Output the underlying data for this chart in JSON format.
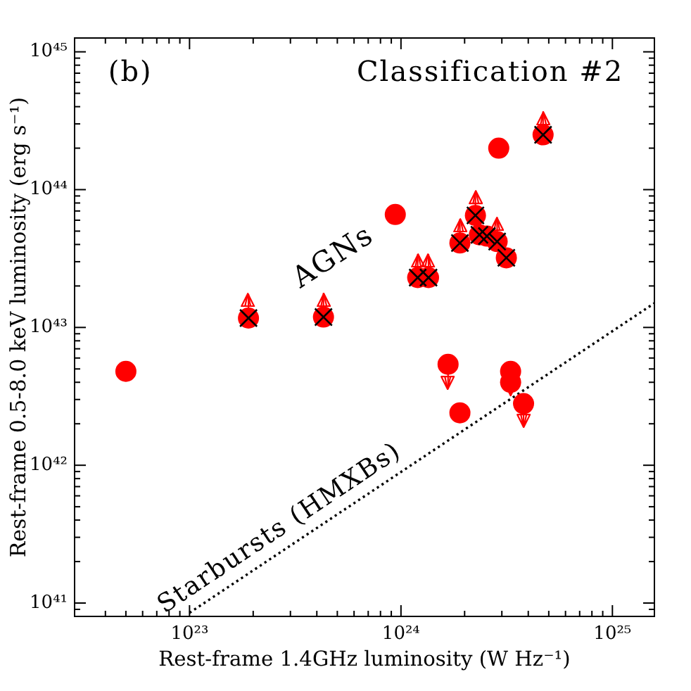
{
  "chart_data": {
    "type": "scatter",
    "xlabel": "Rest-frame 1.4GHz luminosity (W Hz⁻¹)",
    "ylabel": "Rest-frame 0.5-8.0 keV luminosity (erg s⁻¹)",
    "annotations": [
      "(b)",
      "Classification #2",
      "AGNs"
    ],
    "log": "xy",
    "xlim": [
      2.86e+22,
      1.58e+25
    ],
    "xticks": [
      {
        "value": 4e+22,
        "label": null
      },
      {
        "value": 5e+22,
        "label": null
      },
      {
        "value": 6e+22,
        "label": null
      },
      {
        "value": 7e+22,
        "label": null
      },
      {
        "value": 8e+22,
        "label": null
      },
      {
        "value": 9e+22,
        "label": null
      },
      {
        "value": 1e+23,
        "label": "10²³"
      },
      {
        "value": 2e+23,
        "label": null
      },
      {
        "value": 3e+23,
        "label": null
      },
      {
        "value": 4e+23,
        "label": null
      },
      {
        "value": 5e+23,
        "label": null
      },
      {
        "value": 6e+23,
        "label": null
      },
      {
        "value": 7e+23,
        "label": null
      },
      {
        "value": 8e+23,
        "label": null
      },
      {
        "value": 9e+23,
        "label": null
      },
      {
        "value": 1e+24,
        "label": "10²⁴"
      },
      {
        "value": 2e+24,
        "label": null
      },
      {
        "value": 3e+24,
        "label": null
      },
      {
        "value": 4e+24,
        "label": null
      },
      {
        "value": 5e+24,
        "label": null
      },
      {
        "value": 6e+24,
        "label": null
      },
      {
        "value": 7e+24,
        "label": null
      },
      {
        "value": 8e+24,
        "label": null
      },
      {
        "value": 9e+24,
        "label": null
      },
      {
        "value": 1e+25,
        "label": "10²⁵"
      }
    ],
    "ylim": [
      8e+40,
      1.26e+45
    ],
    "yticks": [
      {
        "value": 9e+40,
        "label": null
      },
      {
        "value": 1e+41,
        "label": "10⁴¹"
      },
      {
        "value": 2e+41,
        "label": null
      },
      {
        "value": 3e+41,
        "label": null
      },
      {
        "value": 4e+41,
        "label": null
      },
      {
        "value": 5e+41,
        "label": null
      },
      {
        "value": 6e+41,
        "label": null
      },
      {
        "value": 7e+41,
        "label": null
      },
      {
        "value": 8e+41,
        "label": null
      },
      {
        "value": 9e+41,
        "label": null
      },
      {
        "value": 1e+42,
        "label": "10⁴²"
      },
      {
        "value": 2e+42,
        "label": null
      },
      {
        "value": 3e+42,
        "label": null
      },
      {
        "value": 4e+42,
        "label": null
      },
      {
        "value": 5e+42,
        "label": null
      },
      {
        "value": 6e+42,
        "label": null
      },
      {
        "value": 7e+42,
        "label": null
      },
      {
        "value": 8e+42,
        "label": null
      },
      {
        "value": 9e+42,
        "label": null
      },
      {
        "value": 1e+43,
        "label": "10⁴³"
      },
      {
        "value": 2e+43,
        "label": null
      },
      {
        "value": 3e+43,
        "label": null
      },
      {
        "value": 4e+43,
        "label": null
      },
      {
        "value": 5e+43,
        "label": null
      },
      {
        "value": 6e+43,
        "label": null
      },
      {
        "value": 7e+43,
        "label": null
      },
      {
        "value": 8e+43,
        "label": null
      },
      {
        "value": 9e+43,
        "label": null
      },
      {
        "value": 1e+44,
        "label": "10⁴⁴"
      },
      {
        "value": 2e+44,
        "label": null
      },
      {
        "value": 3e+44,
        "label": null
      },
      {
        "value": 4e+44,
        "label": null
      },
      {
        "value": 5e+44,
        "label": null
      },
      {
        "value": 6e+44,
        "label": null
      },
      {
        "value": 7e+44,
        "label": null
      },
      {
        "value": 8e+44,
        "label": null
      },
      {
        "value": 9e+44,
        "label": null
      },
      {
        "value": 1e+45,
        "label": "10⁴⁵"
      }
    ],
    "series": [
      {
        "type": "scatter",
        "color": "#ff0000",
        "marker": "circle",
        "x": [
          5e+22,
          9.4e+23,
          2.9e+24,
          1.9e+24,
          3.3e+24
        ],
        "values": [
          4.8e+42,
          6.6e+43,
          2e+44,
          2.4e+42,
          4e+42
        ]
      },
      {
        "type": "scatter",
        "color": "#ff0000",
        "marker": "circle",
        "x": [
          1.9e+23,
          4.3e+23,
          1.2e+24,
          1.35e+24,
          1.9e+24,
          2.25e+24,
          2.35e+24,
          2.55e+24,
          2.85e+24,
          3.15e+24,
          4.7e+24
        ],
        "values": [
          1.17e+43,
          1.19e+43,
          2.3e+43,
          2.3e+43,
          4.1e+43,
          6.5e+43,
          4.7e+43,
          4.6e+43,
          4.2e+43,
          3.2e+43,
          2.5e+44
        ],
        "errors": [
          [
            1.17e+43,
            1.75e+43
          ],
          [
            1.19e+43,
            1.78e+43
          ],
          [
            2.3e+43,
            3.4e+43
          ],
          [
            2.3e+43,
            3.4e+43
          ],
          [
            4.1e+43,
            6.1e+43
          ],
          [
            6.5e+43,
            9.7e+43
          ],
          null,
          null,
          [
            4.2e+43,
            6.3e+43
          ],
          null,
          [
            2.5e+44,
            3.7e+44
          ]
        ]
      },
      {
        "type": "scatter",
        "color": "#000000",
        "marker": "cross",
        "x": [
          1.9e+23,
          4.3e+23,
          1.2e+24,
          1.35e+24,
          1.9e+24,
          2.25e+24,
          2.35e+24,
          2.55e+24,
          2.85e+24,
          3.15e+24,
          4.7e+24
        ],
        "values": [
          1.17e+43,
          1.19e+43,
          2.3e+43,
          2.3e+43,
          4.1e+43,
          6.5e+43,
          4.7e+43,
          4.6e+43,
          4.2e+43,
          3.2e+43,
          2.5e+44
        ]
      },
      {
        "type": "scatter",
        "color": "#ff0000",
        "marker": "circle",
        "x": [
          1.67e+24,
          3.3e+24,
          3.8e+24
        ],
        "values": [
          5.4e+42,
          4.8e+42,
          2.8e+42
        ],
        "errors": [
          [
            3.6e+42,
            5.4e+42
          ],
          [
            3.2e+42,
            4.8e+42
          ],
          [
            1.9e+42,
            2.8e+42
          ]
        ]
      },
      {
        "type": "line",
        "name": "Starbursts (HMXBs)",
        "color": "#000000",
        "line_style": "dotted",
        "marker": "none",
        "x": [
          1e+23,
          1.58e+25
        ],
        "values": [
          8.5e+40,
          1.5e+43
        ]
      }
    ]
  }
}
